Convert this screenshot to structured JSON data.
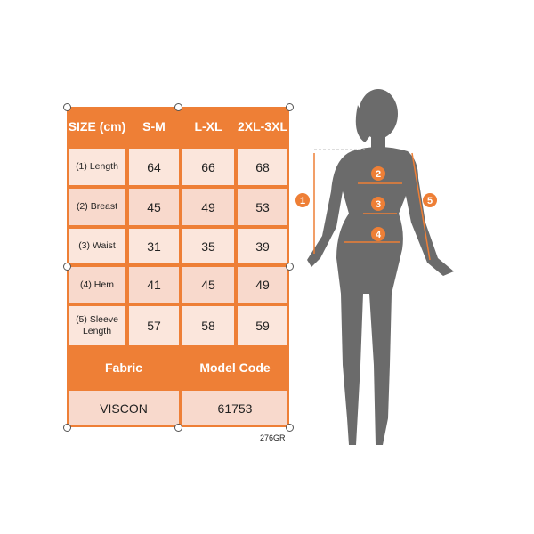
{
  "table": {
    "headers": [
      "SIZE (cm)",
      "S-M",
      "L-XL",
      "2XL-3XL"
    ],
    "rows": [
      {
        "label": "(1) Length",
        "values": [
          "64",
          "66",
          "68"
        ]
      },
      {
        "label": "(2) Breast",
        "values": [
          "45",
          "49",
          "53"
        ]
      },
      {
        "label": "(3) Waist",
        "values": [
          "31",
          "35",
          "39"
        ]
      },
      {
        "label": "(4) Hem",
        "values": [
          "41",
          "45",
          "49"
        ]
      },
      {
        "label": "(5) Sleeve Length",
        "values": [
          "57",
          "58",
          "59"
        ]
      }
    ],
    "footer_headers": [
      "Fabric",
      "Model Code"
    ],
    "footer_values": [
      "VISCON",
      "61753"
    ]
  },
  "product_code": "276GR",
  "markers": [
    "1",
    "2",
    "3",
    "4",
    "5"
  ],
  "colors": {
    "accent": "#ee7f36",
    "silhouette": "#6b6b6b",
    "cell": "#f8d9cc"
  }
}
